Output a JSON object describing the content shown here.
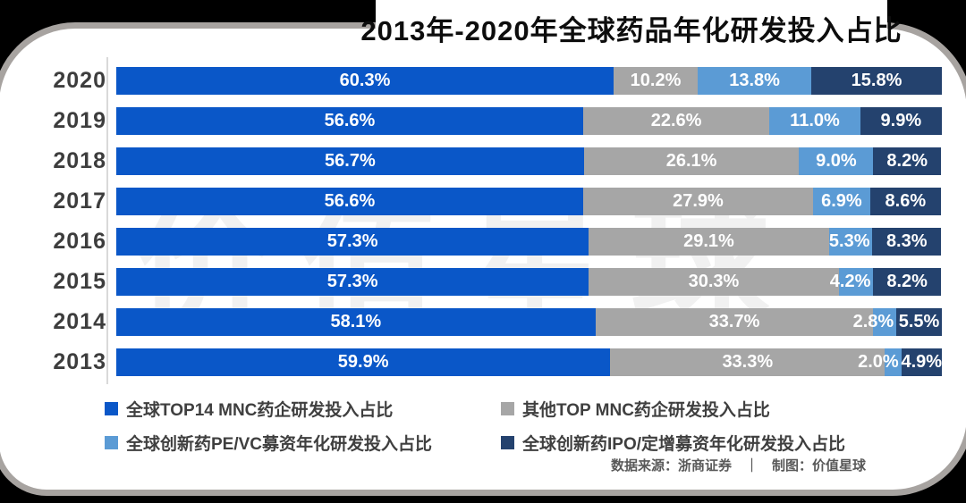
{
  "title": "2013年-2020年全球药品年化研发投入占比",
  "watermark": "价值星球",
  "footer": {
    "text": "数据来源：浙商证券　｜　制图：价值星球"
  },
  "legend": [
    {
      "label": "全球TOP14 MNC药企研发投入占比",
      "color": "#0a57c8"
    },
    {
      "label": "其他TOP MNC药企研发投入占比",
      "color": "#a6a6a6"
    },
    {
      "label": "全球创新药PE/VC募资年化研发投入占比",
      "color": "#5b9bd5"
    },
    {
      "label": "全球创新药IPO/定增募资年化研发投入占比",
      "color": "#24426e"
    }
  ],
  "chart_data": {
    "type": "bar",
    "orientation": "horizontal",
    "stacked": true,
    "value_unit": "%",
    "xlim": [
      0,
      100
    ],
    "grid": false,
    "legend_position": "bottom",
    "categories": [
      "2020",
      "2019",
      "2018",
      "2017",
      "2016",
      "2015",
      "2014",
      "2013"
    ],
    "series": [
      {
        "name": "全球TOP14 MNC药企研发投入占比",
        "color": "#0a57c8",
        "values": [
          60.3,
          56.6,
          56.7,
          56.6,
          57.3,
          57.3,
          58.1,
          59.9
        ],
        "labels": [
          "60.3%",
          "56.6%",
          "56.7%",
          "56.6%",
          "57.3%",
          "57.3%",
          "58.1%",
          "59.9%"
        ]
      },
      {
        "name": "其他TOP MNC药企研发投入占比",
        "color": "#a6a6a6",
        "values": [
          10.2,
          22.6,
          26.1,
          27.9,
          29.1,
          30.3,
          33.7,
          33.3
        ],
        "labels": [
          "10.2%",
          "22.6%",
          "26.1%",
          "27.9%",
          "29.1%",
          "30.3%",
          "33.7%",
          "33.3%"
        ]
      },
      {
        "name": "全球创新药PE/VC募资年化研发投入占比",
        "color": "#5b9bd5",
        "values": [
          13.8,
          11.0,
          9.0,
          6.9,
          5.3,
          4.2,
          2.8,
          2.0
        ],
        "labels": [
          "13.8%",
          "11.0%",
          "9.0%",
          "6.9%",
          "5.3%",
          "4.2%",
          "2.8%",
          "2.0%"
        ]
      },
      {
        "name": "全球创新药IPO/定增募资年化研发投入占比",
        "color": "#24426e",
        "values": [
          15.8,
          9.9,
          8.2,
          8.6,
          8.3,
          8.2,
          5.5,
          4.9
        ],
        "labels": [
          "15.8%",
          "9.9%",
          "8.2%",
          "8.6%",
          "8.3%",
          "8.2%",
          "5.5%",
          "4.9%"
        ]
      }
    ]
  }
}
